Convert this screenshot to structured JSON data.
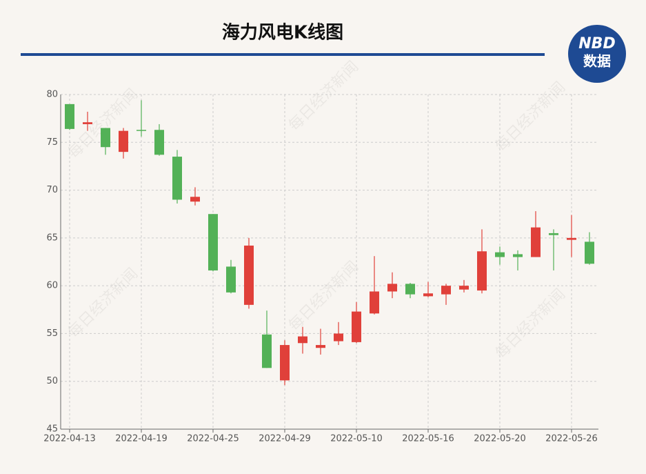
{
  "chart_data": {
    "type": "candlestick",
    "title": "海力风电K线图",
    "logo_top": "NBD",
    "logo_bottom": "数据",
    "watermark": "每日经济新闻",
    "categories": [
      "2022-04-13",
      null,
      null,
      null,
      "2022-04-19",
      null,
      null,
      null,
      "2022-04-25",
      null,
      null,
      null,
      "2022-04-29",
      null,
      null,
      null,
      "2022-05-10",
      null,
      null,
      null,
      "2022-05-16",
      null,
      null,
      null,
      "2022-05-20",
      null,
      null,
      null,
      "2022-05-26",
      null
    ],
    "open": [
      79.0,
      76.9,
      76.5,
      74.0,
      76.3,
      76.3,
      73.5,
      68.8,
      67.5,
      62.0,
      58.0,
      54.9,
      50.1,
      54.0,
      53.5,
      54.2,
      54.1,
      57.1,
      59.4,
      60.2,
      58.9,
      59.1,
      59.6,
      59.5,
      63.5,
      63.3,
      63.0,
      65.5,
      64.8,
      64.6
    ],
    "high": [
      79.0,
      78.2,
      76.5,
      76.5,
      79.4,
      76.9,
      74.2,
      70.3,
      67.5,
      62.7,
      65.0,
      57.4,
      54.3,
      55.7,
      55.5,
      56.2,
      58.3,
      63.1,
      61.4,
      60.3,
      60.4,
      60.2,
      60.6,
      65.9,
      64.1,
      63.7,
      67.8,
      65.9,
      67.4,
      65.6
    ],
    "low": [
      76.3,
      76.2,
      73.7,
      73.3,
      75.6,
      73.6,
      68.6,
      68.4,
      61.5,
      59.2,
      57.6,
      51.4,
      49.6,
      52.9,
      52.8,
      53.8,
      54.0,
      57.0,
      58.7,
      58.7,
      58.8,
      58.0,
      59.3,
      59.2,
      62.2,
      61.6,
      63.0,
      61.6,
      63.0,
      62.2
    ],
    "close": [
      76.4,
      77.1,
      74.5,
      76.2,
      76.2,
      73.7,
      69.0,
      69.3,
      61.6,
      59.3,
      64.2,
      51.4,
      53.8,
      54.7,
      53.8,
      55.0,
      57.3,
      59.4,
      60.2,
      59.1,
      59.2,
      60.0,
      60.0,
      63.6,
      63.0,
      63.0,
      66.1,
      65.3,
      65.0,
      62.3
    ],
    "up_color": "#e0403a",
    "down_color": "#53b157",
    "ylim": [
      45,
      80
    ],
    "yticks": [
      45,
      50,
      55,
      60,
      65,
      70,
      75,
      80
    ],
    "grid": true
  }
}
